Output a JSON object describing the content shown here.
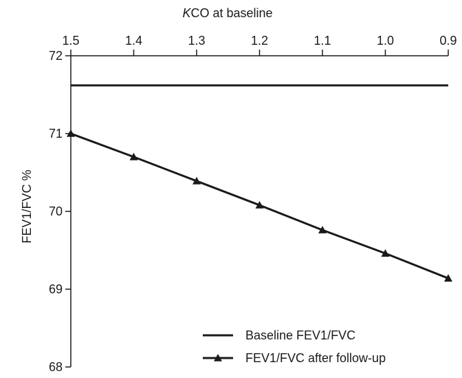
{
  "chart_data": {
    "type": "line",
    "x_axis_position": "top",
    "x_reversed": true,
    "xlabel_italic_part": "K",
    "xlabel_rest": "CO at baseline",
    "xlabel": "KCO at baseline",
    "ylabel": "FEV1/FVC %",
    "xlim": [
      1.5,
      0.9
    ],
    "ylim": [
      68,
      72
    ],
    "x_ticks": [
      "1.5",
      "1.4",
      "1.3",
      "1.2",
      "1.1",
      "1.0",
      "0.9"
    ],
    "y_ticks": [
      "72",
      "71",
      "70",
      "69",
      "68"
    ],
    "x": [
      1.5,
      1.4,
      1.3,
      1.2,
      1.1,
      1.0,
      0.9
    ],
    "series": [
      {
        "name": "Baseline FEV1/FVC",
        "values": [
          71.62,
          71.62,
          71.62,
          71.62,
          71.62,
          71.62,
          71.62
        ],
        "marker": "none"
      },
      {
        "name": "FEV1/FVC after follow-up",
        "values": [
          71.0,
          70.7,
          70.39,
          70.08,
          69.76,
          69.46,
          69.14
        ],
        "marker": "triangle"
      }
    ],
    "legend_position": "bottom-right",
    "grid": false,
    "line_color": "#1a1a1a"
  }
}
